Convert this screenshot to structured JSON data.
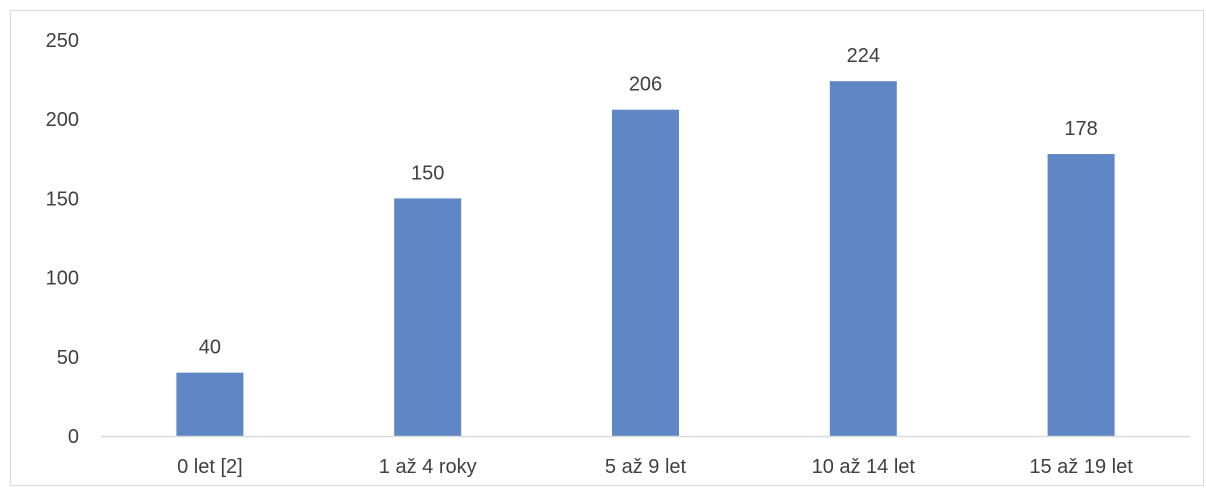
{
  "chart_data": {
    "type": "bar",
    "title": "",
    "xlabel": "",
    "ylabel": "",
    "categories": [
      "0 let [2]",
      "1 až 4 roky",
      "5 až 9 let",
      "10 až 14 let",
      "15 až 19 let"
    ],
    "values": [
      40,
      150,
      206,
      224,
      178
    ],
    "data_labels": [
      "40",
      "150",
      "206",
      "224",
      "178"
    ],
    "ylim": [
      0,
      250
    ],
    "yticks": [
      0,
      50,
      100,
      150,
      200,
      250
    ],
    "ytick_labels": [
      "0",
      "50",
      "100",
      "150",
      "200",
      "250"
    ],
    "grid": false,
    "legend": "none",
    "bar_color": "#5f87c5",
    "axis_color": "#d9d9d9",
    "text_color": "#404040"
  }
}
